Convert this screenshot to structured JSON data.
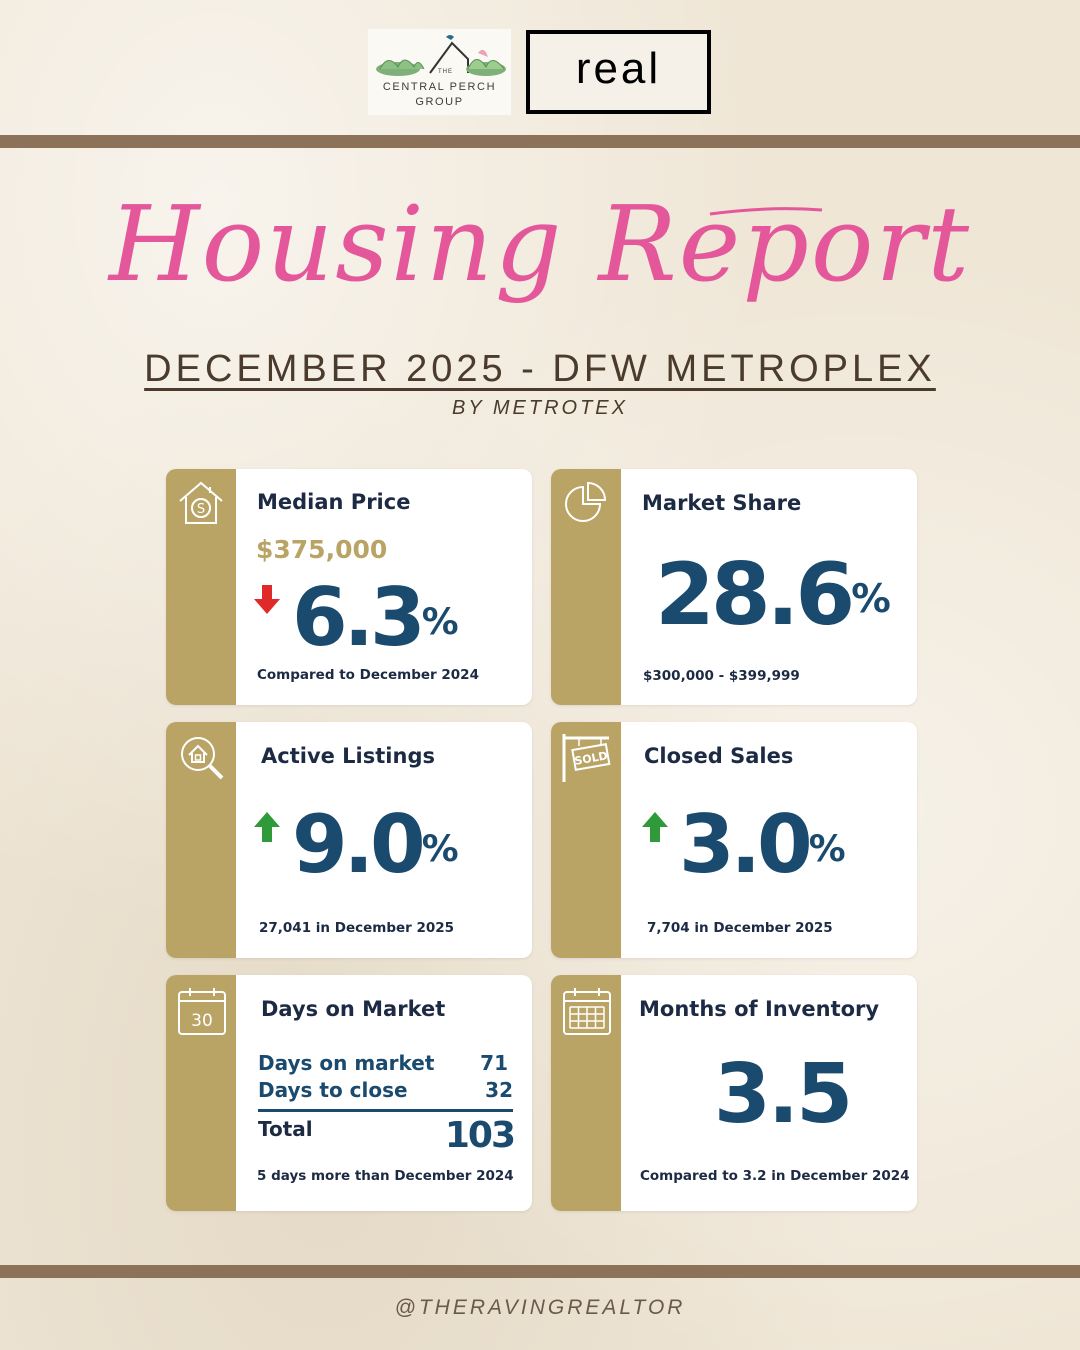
{
  "header": {
    "logo_central_perch": {
      "the": "THE",
      "line1": "CENTRAL PERCH",
      "line2": "GROUP"
    },
    "logo_real": "real"
  },
  "title_script": "Housing Report",
  "subtitle": "DECEMBER 2025 - DFW METROPLEX",
  "byline": "BY METROTEX",
  "cards": {
    "median_price": {
      "title": "Median Price",
      "price": "$375,000",
      "change": "6.3",
      "unit": "%",
      "direction": "down",
      "note": "Compared to December 2024",
      "icon": "house-dollar-icon"
    },
    "market_share": {
      "title": "Market Share",
      "value": "28.6",
      "unit": "%",
      "note": "$300,000 - $399,999",
      "icon": "pie-chart-icon"
    },
    "active_listings": {
      "title": "Active Listings",
      "change": "9.0",
      "unit": "%",
      "direction": "up",
      "note": "27,041 in December 2025",
      "icon": "house-search-icon"
    },
    "closed_sales": {
      "title": "Closed Sales",
      "change": "3.0",
      "unit": "%",
      "direction": "up",
      "note": "7,704 in December 2025",
      "icon": "sold-sign-icon"
    },
    "days_on_market": {
      "title": "Days on Market",
      "calendar_number": "30",
      "rows": [
        {
          "label": "Days on market",
          "value": "71"
        },
        {
          "label": "Days to close",
          "value": "32"
        }
      ],
      "total_label": "Total",
      "total_value": "103",
      "note": "5 days more than December 2024",
      "icon": "calendar-30-icon"
    },
    "months_inventory": {
      "title": "Months of Inventory",
      "value": "3.5",
      "note": "Compared to 3.2 in December 2024",
      "icon": "calendar-grid-icon"
    }
  },
  "footer_handle": "@THERAVINGREALTOR",
  "colors": {
    "background": "#efe6d6",
    "band": "#8b7259",
    "gold": "#b9a466",
    "navy": "#1a4a6e",
    "script_pink": "#e4579a",
    "arrow_up": "#2e9a3a",
    "arrow_down": "#e02a2a"
  }
}
